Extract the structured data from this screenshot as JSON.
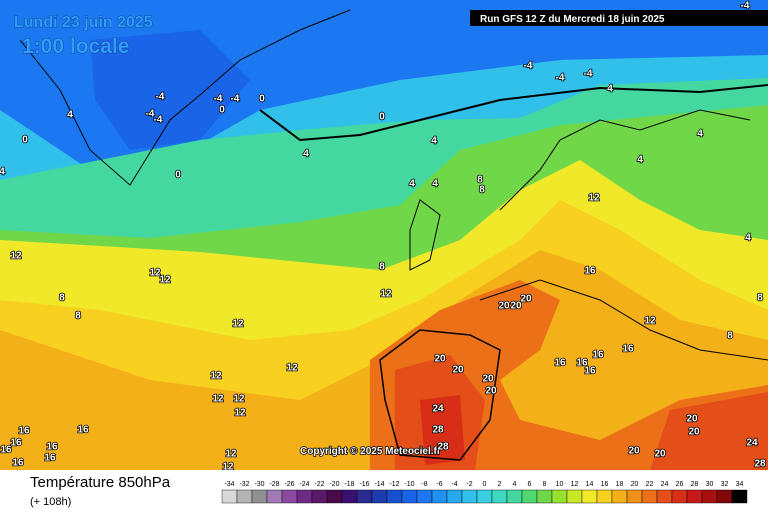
{
  "header": {
    "date": "Lundi 23 juin 2025",
    "time": "1:00 locale",
    "run": "Run GFS 12 Z du Mercredi 18 juin 2025"
  },
  "map": {
    "copyright": "Copyright © 2025 Meteociel.fr",
    "contour_labels": [
      -4,
      -4,
      -4,
      -4,
      -4,
      0,
      0,
      4,
      0,
      4,
      0,
      4,
      0,
      -4,
      -4,
      -4,
      -4,
      4,
      4,
      4,
      4,
      4,
      4,
      8,
      8,
      12,
      4,
      12,
      12,
      12,
      8,
      8,
      8,
      12,
      12,
      12,
      12,
      12,
      12,
      12,
      20,
      20,
      20,
      16,
      12,
      8,
      8,
      20,
      20,
      20,
      20,
      16,
      16,
      16,
      16,
      16,
      24,
      28,
      20,
      20,
      16,
      16,
      16,
      16,
      16,
      16,
      16,
      24,
      28,
      20,
      20,
      12,
      12,
      28
    ]
  },
  "footer": {
    "title": "Température 850hPa",
    "lead": "(+ 108h)"
  },
  "legend": {
    "ticks": [
      -34,
      -32,
      -30,
      -28,
      -26,
      -24,
      -22,
      -20,
      -18,
      -16,
      -14,
      -12,
      -10,
      -8,
      -6,
      -4,
      -2,
      0,
      2,
      4,
      6,
      8,
      10,
      12,
      14,
      16,
      18,
      20,
      22,
      24,
      26,
      28,
      30,
      32,
      34
    ],
    "colors": [
      "#d8d8d8",
      "#b4b4b4",
      "#909090",
      "#a07ab4",
      "#8a4aa0",
      "#6e2a84",
      "#5a1a6a",
      "#4a0a4a",
      "#3a1070",
      "#2a2a90",
      "#1c3cb0",
      "#1850d0",
      "#1a64e8",
      "#1c78f0",
      "#2290f0",
      "#28a8ee",
      "#30c0ea",
      "#38d0e0",
      "#3ed8c0",
      "#44d8a0",
      "#50d870",
      "#70d848",
      "#98e030",
      "#c8e828",
      "#f0e828",
      "#f8d020",
      "#f4b018",
      "#f09018",
      "#ec7018",
      "#e44e18",
      "#d82e18",
      "#c81818",
      "#a81010",
      "#800808",
      "#000000"
    ]
  }
}
